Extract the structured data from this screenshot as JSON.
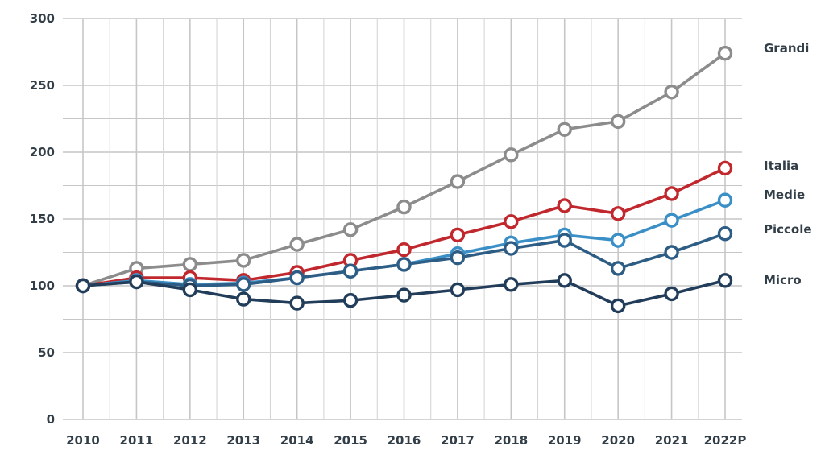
{
  "chart_data": {
    "type": "line",
    "title": "",
    "xlabel": "",
    "ylabel": "",
    "categories": [
      "2010",
      "2011",
      "2012",
      "2013",
      "2014",
      "2015",
      "2016",
      "2017",
      "2018",
      "2019",
      "2020",
      "2021",
      "2022P"
    ],
    "ylim": [
      0,
      300
    ],
    "yticks": [
      0,
      50,
      100,
      150,
      200,
      250,
      300
    ],
    "grid": true,
    "legend_placement": "right",
    "series": [
      {
        "name": "Grandi",
        "color": "#8c8c8c",
        "values": [
          100,
          113,
          116,
          119,
          131,
          142,
          159,
          178,
          198,
          217,
          223,
          245,
          274
        ]
      },
      {
        "name": "Italia",
        "color": "#c0282d",
        "values": [
          100,
          106,
          106,
          104,
          110,
          119,
          127,
          138,
          148,
          160,
          154,
          169,
          188
        ]
      },
      {
        "name": "Medie",
        "color": "#3a8fc7",
        "values": [
          100,
          104,
          101,
          102,
          106,
          111,
          116,
          124,
          132,
          138,
          134,
          149,
          164
        ]
      },
      {
        "name": "Piccole",
        "color": "#2d5d84",
        "values": [
          100,
          103,
          100,
          101,
          106,
          111,
          116,
          121,
          128,
          134,
          113,
          125,
          139
        ]
      },
      {
        "name": "Micro",
        "color": "#223d5a",
        "values": [
          100,
          103,
          97,
          90,
          87,
          89,
          93,
          97,
          101,
          104,
          85,
          94,
          104
        ]
      }
    ]
  }
}
